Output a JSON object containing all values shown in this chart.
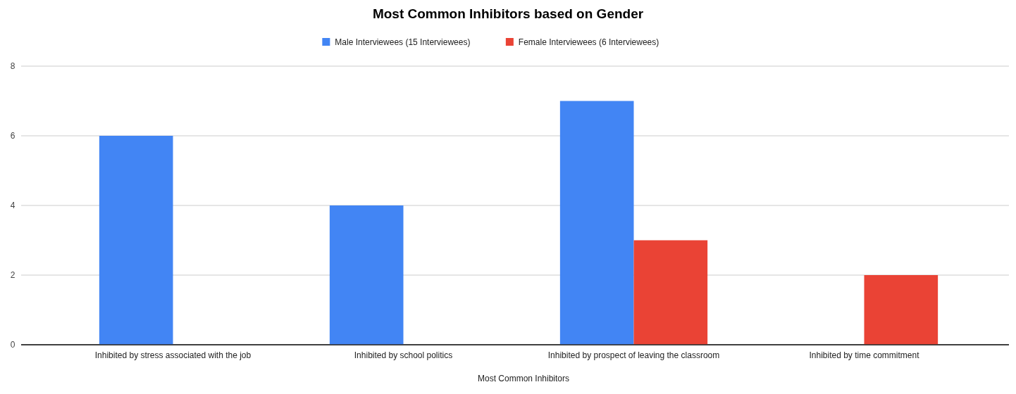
{
  "chart_data": {
    "type": "bar",
    "title": "Most Common Inhibitors based on Gender",
    "xlabel": "Most Common Inhibitors",
    "categories": [
      "Inhibited by stress associated with the job",
      "Inhibited by school politics",
      "Inhibited by prospect of leaving the classroom",
      "Inhibited by time commitment"
    ],
    "series": [
      {
        "name": "Male Interviewees (15 Interviewees)",
        "color": "#4285f4",
        "values": [
          6,
          4,
          7,
          0
        ]
      },
      {
        "name": "Female Interviewees (6 Interviewees)",
        "color": "#ea4335",
        "values": [
          0,
          0,
          3,
          2
        ]
      }
    ],
    "ylim": [
      0,
      8
    ],
    "yticks": [
      0,
      2,
      4,
      6,
      8
    ],
    "grid": "y",
    "legend": "top"
  }
}
